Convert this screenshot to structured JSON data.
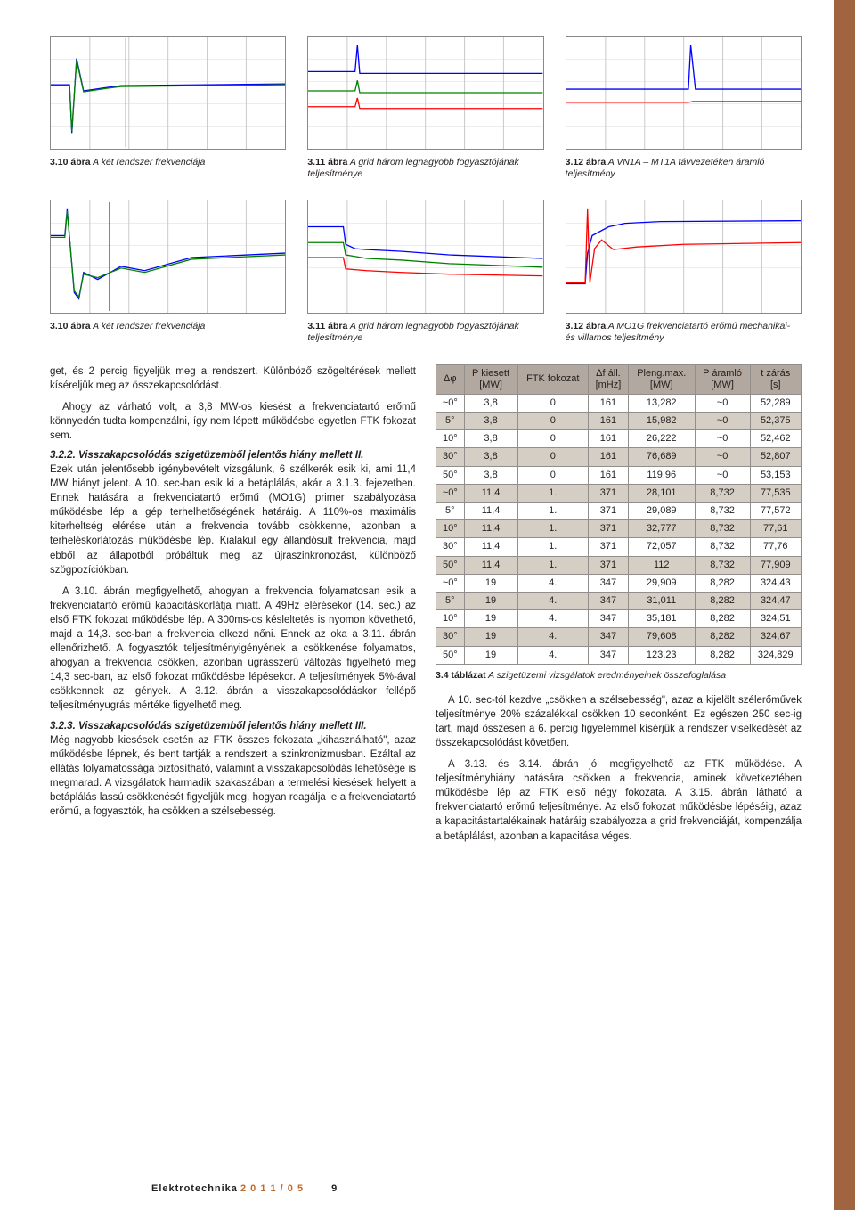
{
  "charts_row1": [
    {
      "caption_bold": "3.10 ábra",
      "caption_text": "A két rendszer frekvenciája",
      "bg": "#ffffff",
      "grid": "#cccccc",
      "series": [
        {
          "color": "#0000ff",
          "width": 1.3,
          "points": [
            [
              0,
              55
            ],
            [
              8,
              55
            ],
            [
              9,
              110
            ],
            [
              11,
              25
            ],
            [
              14,
              62
            ],
            [
              24,
              58
            ],
            [
              30,
              56
            ],
            [
              100,
              54
            ]
          ]
        },
        {
          "color": "#008000",
          "width": 1.3,
          "points": [
            [
              0,
              56
            ],
            [
              8,
              56
            ],
            [
              9,
              108
            ],
            [
              11,
              27
            ],
            [
              14,
              63
            ],
            [
              24,
              59
            ],
            [
              30,
              57
            ],
            [
              100,
              55
            ]
          ]
        }
      ],
      "spikes": [
        {
          "x": 32,
          "color": "#ff0000"
        }
      ]
    },
    {
      "caption_bold": "3.11 ábra",
      "caption_text": "A grid három legnagyobb fogyasztójának teljesítménye",
      "bg": "#ffffff",
      "grid": "#cccccc",
      "series": [
        {
          "color": "#0000ff",
          "width": 1.3,
          "points": [
            [
              0,
              40
            ],
            [
              20,
              40
            ],
            [
              21,
              10
            ],
            [
              22,
              42
            ],
            [
              50,
              42
            ],
            [
              100,
              42
            ]
          ]
        },
        {
          "color": "#008000",
          "width": 1.3,
          "points": [
            [
              0,
              62
            ],
            [
              20,
              62
            ],
            [
              21,
              50
            ],
            [
              22,
              64
            ],
            [
              50,
              64
            ],
            [
              100,
              64
            ]
          ]
        },
        {
          "color": "#ff0000",
          "width": 1.3,
          "points": [
            [
              0,
              80
            ],
            [
              20,
              80
            ],
            [
              21,
              70
            ],
            [
              22,
              82
            ],
            [
              50,
              82
            ],
            [
              100,
              82
            ]
          ]
        }
      ],
      "spikes": []
    },
    {
      "caption_bold": "3.12 ábra",
      "caption_text": "A VN1A – MT1A távvezetéken áramló teljesítmény",
      "bg": "#ffffff",
      "grid": "#cccccc",
      "series": [
        {
          "color": "#0000ff",
          "width": 1.3,
          "points": [
            [
              0,
              60
            ],
            [
              52,
              60
            ],
            [
              53,
              10
            ],
            [
              55,
              60
            ],
            [
              100,
              60
            ]
          ]
        },
        {
          "color": "#ff0000",
          "width": 1.3,
          "points": [
            [
              0,
              75
            ],
            [
              52,
              75
            ],
            [
              54,
              74
            ],
            [
              100,
              74
            ]
          ]
        }
      ],
      "spikes": []
    }
  ],
  "charts_row2": [
    {
      "caption_bold": "3.10 ábra",
      "caption_text": "A két rendszer frekvenciája",
      "bg": "#ffffff",
      "grid": "#cccccc",
      "series": [
        {
          "color": "#0000ff",
          "width": 1.3,
          "points": [
            [
              0,
              40
            ],
            [
              6,
              40
            ],
            [
              7,
              10
            ],
            [
              10,
              105
            ],
            [
              12,
              112
            ],
            [
              14,
              82
            ],
            [
              20,
              90
            ],
            [
              30,
              75
            ],
            [
              40,
              80
            ],
            [
              60,
              65
            ],
            [
              100,
              60
            ]
          ]
        },
        {
          "color": "#008000",
          "width": 1.3,
          "points": [
            [
              0,
              42
            ],
            [
              6,
              42
            ],
            [
              7,
              12
            ],
            [
              10,
              103
            ],
            [
              12,
              110
            ],
            [
              14,
              84
            ],
            [
              20,
              88
            ],
            [
              30,
              77
            ],
            [
              40,
              82
            ],
            [
              60,
              67
            ],
            [
              100,
              62
            ]
          ]
        }
      ],
      "spikes": [
        {
          "x": 25,
          "color": "#008000"
        }
      ]
    },
    {
      "caption_bold": "3.11 ábra",
      "caption_text": "A grid három legnagyobb fogyasztójának teljesítménye",
      "bg": "#ffffff",
      "grid": "#cccccc",
      "series": [
        {
          "color": "#0000ff",
          "width": 1.3,
          "points": [
            [
              0,
              30
            ],
            [
              15,
              30
            ],
            [
              16,
              50
            ],
            [
              20,
              55
            ],
            [
              25,
              56
            ],
            [
              40,
              58
            ],
            [
              60,
              62
            ],
            [
              100,
              66
            ]
          ]
        },
        {
          "color": "#008000",
          "width": 1.3,
          "points": [
            [
              0,
              48
            ],
            [
              15,
              48
            ],
            [
              16,
              62
            ],
            [
              25,
              66
            ],
            [
              40,
              68
            ],
            [
              60,
              72
            ],
            [
              100,
              76
            ]
          ]
        },
        {
          "color": "#ff0000",
          "width": 1.3,
          "points": [
            [
              0,
              65
            ],
            [
              15,
              65
            ],
            [
              16,
              78
            ],
            [
              25,
              80
            ],
            [
              40,
              82
            ],
            [
              60,
              84
            ],
            [
              100,
              86
            ]
          ]
        }
      ],
      "spikes": []
    },
    {
      "caption_bold": "3.12 ábra",
      "caption_text": "A MO1G frekvenciatartó erőmű mechanikai- és villamos teljesítmény",
      "bg": "#ffffff",
      "grid": "#cccccc",
      "series": [
        {
          "color": "#0000ff",
          "width": 1.3,
          "points": [
            [
              0,
              95
            ],
            [
              8,
              95
            ],
            [
              9,
              60
            ],
            [
              11,
              40
            ],
            [
              18,
              30
            ],
            [
              25,
              26
            ],
            [
              40,
              24
            ],
            [
              100,
              23
            ]
          ]
        },
        {
          "color": "#ff0000",
          "width": 1.3,
          "points": [
            [
              0,
              94
            ],
            [
              8,
              94
            ],
            [
              9,
              10
            ],
            [
              10,
              94
            ],
            [
              12,
              55
            ],
            [
              15,
              45
            ],
            [
              20,
              56
            ],
            [
              30,
              53
            ],
            [
              50,
              50
            ],
            [
              100,
              48
            ]
          ]
        }
      ],
      "spikes": []
    }
  ],
  "left_column": {
    "p1": "get, és 2 percig figyeljük meg a rendszert. Különböző szögeltérések mellett kíséreljük meg az összekapcsolódást.",
    "p2": "Ahogy az várható volt, a 3,8 MW-os kiesést a frekvenciatartó erőmű könnyedén tudta kompenzálni, így nem lépett működésbe egyetlen FTK fokozat sem.",
    "h1": "3.2.2. Visszakapcsolódás szigetüzemből jelentős hiány mellett II.",
    "p3": "Ezek után jelentősebb igénybevételt vizsgálunk, 6 szélkerék esik ki, ami 11,4 MW hiányt jelent. A 10. sec-ban esik ki a betáplálás, akár a 3.1.3. fejezetben. Ennek hatására a frekvenciatartó erőmű (MO1G) primer szabályozása működésbe lép a gép terhelhetőségének határáig. A 110%-os maximális kiterheltség elérése után a frekvencia tovább csökkenne, azonban a terheléskorlátozás működésbe lép. Kialakul egy állandósult frekvencia, majd ebből az állapotból próbáltuk meg az újraszinkronozást, különböző szögpozíciókban.",
    "p4": "A 3.10. ábrán megfigyelhető, ahogyan a frekvencia folyamatosan esik a frekvenciatartó erőmű kapacitáskorlátja miatt. A 49Hz elérésekor (14. sec.) az első FTK fokozat működésbe lép. A 300ms-os késleltetés is nyomon követhető, majd a 14,3. sec-ban a frekvencia elkezd nőni. Ennek az oka a 3.11. ábrán ellenőrizhető. A fogyasztók teljesítményigényének a csökkenése folyamatos, ahogyan a frekvencia csökken, azonban ugrásszerű változás figyelhető meg 14,3 sec-ban, az első fokozat működésbe lépésekor. A teljesítmények 5%-ával csökkennek az igények. A 3.12. ábrán a visszakapcsolódáskor fellépő teljesítményugrás mértéke figyelhető meg.",
    "h2": "3.2.3. Visszakapcsolódás szigetüzemből jelentős hiány mellett III.",
    "p5": "Még nagyobb kiesések esetén az FTK összes fokozata „kihasználható\", azaz működésbe lépnek, és bent tartják a rendszert a szinkronizmusban. Ezáltal az ellátás folyamatossága biztosítható, valamint a visszakapcsolódás lehetősége is megmarad. A vizsgálatok harmadik szakaszában a termelési kiesések helyett a betáplálás lassú csökkenését figyeljük meg, hogyan reagálja le a frekvenciatartó erőmű, a fogyasztók, ha csökken a szélsebesség."
  },
  "table": {
    "headers": [
      "Δφ",
      "P kiesett [MW]",
      "FTK fokozat",
      "Δf áll. [mHz]",
      "Pleng.max. [MW]",
      "P áramló [MW]",
      "t zárás [s]"
    ],
    "rows": [
      [
        "~0°",
        "3,8",
        "0",
        "161",
        "13,282",
        "~0",
        "52,289"
      ],
      [
        "5°",
        "3,8",
        "0",
        "161",
        "15,982",
        "~0",
        "52,375"
      ],
      [
        "10°",
        "3,8",
        "0",
        "161",
        "26,222",
        "~0",
        "52,462"
      ],
      [
        "30°",
        "3,8",
        "0",
        "161",
        "76,689",
        "~0",
        "52,807"
      ],
      [
        "50°",
        "3,8",
        "0",
        "161",
        "119,96",
        "~0",
        "53,153"
      ],
      [
        "~0°",
        "11,4",
        "1.",
        "371",
        "28,101",
        "8,732",
        "77,535"
      ],
      [
        "5°",
        "11,4",
        "1.",
        "371",
        "29,089",
        "8,732",
        "77,572"
      ],
      [
        "10°",
        "11,4",
        "1.",
        "371",
        "32,777",
        "8,732",
        "77,61"
      ],
      [
        "30°",
        "11,4",
        "1.",
        "371",
        "72,057",
        "8,732",
        "77,76"
      ],
      [
        "50°",
        "11,4",
        "1.",
        "371",
        "112",
        "8,732",
        "77,909"
      ],
      [
        "~0°",
        "19",
        "4.",
        "347",
        "29,909",
        "8,282",
        "324,43"
      ],
      [
        "5°",
        "19",
        "4.",
        "347",
        "31,011",
        "8,282",
        "324,47"
      ],
      [
        "10°",
        "19",
        "4.",
        "347",
        "35,181",
        "8,282",
        "324,51"
      ],
      [
        "30°",
        "19",
        "4.",
        "347",
        "79,608",
        "8,282",
        "324,67"
      ],
      [
        "50°",
        "19",
        "4.",
        "347",
        "123,23",
        "8,282",
        "324,829"
      ]
    ],
    "zebra_indices": [
      1,
      3,
      5,
      7,
      9,
      11,
      13
    ],
    "caption_bold": "3.4 táblázat",
    "caption_text": "A szigetüzemi vizsgálatok eredményeinek összefoglalása"
  },
  "right_column": {
    "p1": "A 10. sec-tól kezdve „csökken a szélsebesség\", azaz a kijelölt szélerőművek teljesítménye 20% százalékkal csökken 10 seconként. Ez egészen 250 sec-ig tart, majd összesen a 6. percig figyelemmel kísérjük a rendszer viselkedését az összekapcsolódást követően.",
    "p2": "A 3.13. és 3.14. ábrán jól megfigyelhető az FTK működése. A teljesítményhiány hatására csökken a frekvencia, aminek következtében működésbe lép az FTK első négy fokozata. A 3.15. ábrán látható a frekvenciatartó erőmű teljesítménye. Az első fokozat működésbe lépéséig, azaz a kapacitástartalékainak határáig szabályozza a grid frekvenciáját, kompenzálja a betáplálást, azonban a kapacitása véges."
  },
  "footer": {
    "title": "Elektrotechnika",
    "date": "2 0 1 1 / 0 5",
    "page": "9"
  }
}
